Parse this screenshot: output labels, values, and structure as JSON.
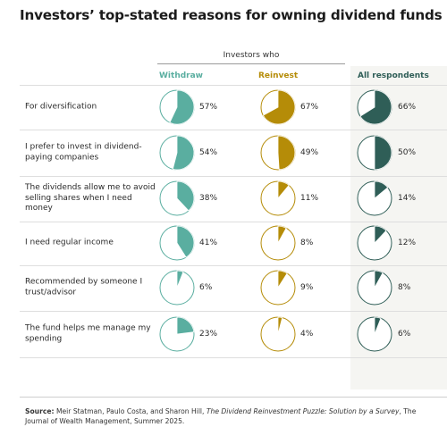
{
  "title": "Investors’ top-stated reasons for owning dividend funds",
  "group_label": "Investors who",
  "source": {
    "label": "Source:",
    "authors": "Meir Statman, Paulo Costa, and Sharon Hill,",
    "paper_title": "The Dividend Reinvestment Puzzle: Solution by a Survey",
    "rest": ", The Journal of Wealth Management, Summer 2025."
  },
  "colors": {
    "withdraw": "#5aaea0",
    "reinvest": "#b58c08",
    "all": "#2f5e57"
  },
  "chart_data": {
    "type": "pie",
    "series": [
      {
        "name": "Withdraw",
        "values": [
          57,
          54,
          38,
          41,
          6,
          23
        ]
      },
      {
        "name": "Reinvest",
        "values": [
          67,
          49,
          11,
          8,
          9,
          4
        ]
      },
      {
        "name": "All respondents",
        "values": [
          66,
          50,
          14,
          12,
          8,
          6
        ]
      }
    ],
    "categories": [
      "For diversification",
      "I prefer to invest in dividend-paying companies",
      "The dividends allow me to avoid selling shares when I need money",
      "I need regular income",
      "Recommended by someone I trust/advisor",
      "The fund helps me manage my spending"
    ],
    "unit": "%"
  }
}
